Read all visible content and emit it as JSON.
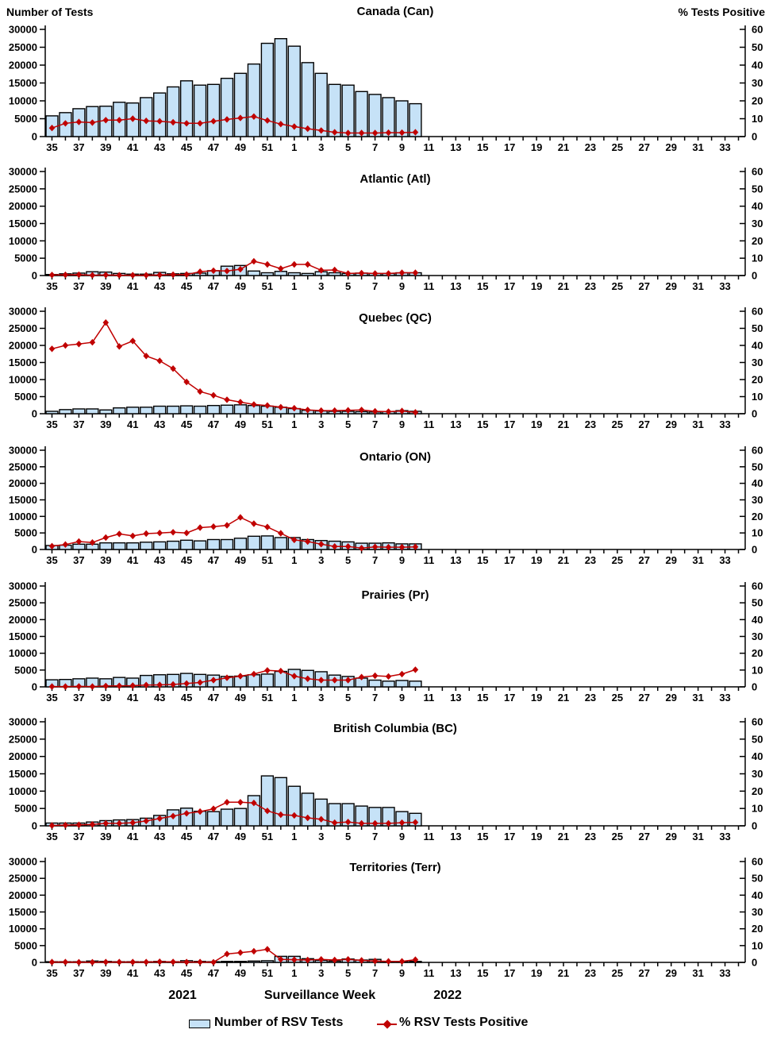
{
  "header": {
    "left_axis_title": "Number of Tests",
    "right_axis_title": "% Tests Positive"
  },
  "footer": {
    "year_left": "2021",
    "xaxis_title": "Surveillance Week",
    "year_right": "2022"
  },
  "legend": {
    "bars_label": "Number of RSV Tests",
    "line_label": "% RSV Tests Positive"
  },
  "colors": {
    "bar_fill": "#C6E2F7",
    "bar_stroke": "#000000",
    "line_color": "#C00000",
    "axis_color": "#000000"
  },
  "chart_data": {
    "type": "bar+line multi-panel",
    "left_axis": {
      "label": "Number of Tests",
      "min": 0,
      "max": 30000,
      "ticks": [
        0,
        5000,
        10000,
        15000,
        20000,
        25000,
        30000
      ]
    },
    "right_axis": {
      "label": "% Tests Positive",
      "min": 0,
      "max": 60,
      "ticks": [
        0,
        10,
        20,
        30,
        40,
        50,
        60
      ]
    },
    "x_axis": {
      "label": "Surveillance Week",
      "weeks": [
        35,
        36,
        37,
        38,
        39,
        40,
        41,
        42,
        43,
        44,
        45,
        46,
        47,
        48,
        49,
        50,
        51,
        52,
        1,
        2,
        3,
        4,
        5,
        6,
        7,
        8,
        9,
        10,
        11,
        12,
        13,
        14,
        15,
        16,
        17,
        18,
        19,
        20,
        21,
        22,
        23,
        24,
        25,
        26,
        27,
        28,
        29,
        30,
        31,
        32,
        33,
        34
      ],
      "labeled_ticks": [
        35,
        37,
        39,
        41,
        43,
        45,
        47,
        49,
        51,
        1,
        3,
        5,
        7,
        9,
        11,
        13,
        15,
        17,
        19,
        21,
        23,
        25,
        27,
        29,
        31,
        33
      ]
    },
    "data_weeks": [
      35,
      36,
      37,
      38,
      39,
      40,
      41,
      42,
      43,
      44,
      45,
      46,
      47,
      48,
      49,
      50,
      51,
      52,
      1,
      2,
      3,
      4,
      5,
      6,
      7,
      8,
      9,
      10
    ],
    "panels": [
      {
        "title": "Canada (Can)",
        "tests": [
          5800,
          6700,
          7800,
          8400,
          8500,
          9600,
          9400,
          10900,
          12200,
          13900,
          15600,
          14400,
          14600,
          16300,
          17700,
          20300,
          26100,
          27400,
          25300,
          20700,
          17700,
          14600,
          14400,
          12600,
          11800,
          10900,
          10000,
          9200
        ],
        "pct_positive": [
          4.8,
          7.4,
          8.2,
          7.8,
          9.2,
          9.2,
          10.0,
          8.8,
          8.6,
          8.0,
          7.4,
          7.4,
          8.6,
          9.6,
          10.4,
          11.2,
          9.0,
          7.0,
          5.6,
          4.4,
          3.4,
          2.4,
          2.0,
          2.0,
          2.0,
          2.2,
          2.2,
          2.4
        ]
      },
      {
        "title": "Atlantic (Atl)",
        "tests": [
          300,
          500,
          700,
          1100,
          1000,
          600,
          400,
          400,
          900,
          500,
          600,
          700,
          1400,
          2700,
          2900,
          1300,
          800,
          1200,
          800,
          600,
          1100,
          800,
          600,
          700,
          600,
          600,
          800,
          800
        ],
        "pct_positive": [
          0.3,
          0.4,
          0.5,
          0.2,
          0.3,
          0.2,
          0.2,
          0.2,
          0.3,
          0.5,
          0.6,
          2.2,
          2.8,
          2.6,
          3.6,
          8.2,
          6.4,
          4.0,
          6.4,
          6.4,
          3.0,
          3.2,
          1.2,
          1.4,
          1.2,
          1.2,
          1.6,
          1.6
        ]
      },
      {
        "title": "Quebec (QC)",
        "tests": [
          700,
          1200,
          1400,
          1400,
          1100,
          1700,
          1900,
          1900,
          2200,
          2200,
          2300,
          2200,
          2400,
          2500,
          2600,
          2400,
          2200,
          1900,
          1500,
          1000,
          800,
          700,
          700,
          600,
          500,
          600,
          900,
          700
        ],
        "pct_positive": [
          38.0,
          40.0,
          40.8,
          41.8,
          53.4,
          39.4,
          42.6,
          33.8,
          31.0,
          26.4,
          18.6,
          13.0,
          10.8,
          8.2,
          6.8,
          5.4,
          4.8,
          3.8,
          3.2,
          2.2,
          1.8,
          1.8,
          2.0,
          2.2,
          1.4,
          1.2,
          1.6,
          0.8
        ]
      },
      {
        "title": "Ontario (ON)",
        "tests": [
          1200,
          1300,
          1600,
          1600,
          2000,
          2000,
          2000,
          2200,
          2300,
          2500,
          2800,
          2600,
          3000,
          3000,
          3400,
          4000,
          4100,
          3600,
          3600,
          3000,
          2700,
          2500,
          2300,
          1900,
          1900,
          2000,
          1700,
          1700
        ],
        "pct_positive": [
          2.0,
          3.0,
          4.8,
          4.2,
          7.2,
          9.4,
          8.2,
          9.6,
          10.0,
          10.4,
          10.0,
          13.2,
          13.8,
          14.6,
          19.4,
          15.6,
          13.6,
          9.8,
          5.8,
          4.8,
          3.2,
          1.8,
          1.8,
          0.8,
          1.6,
          1.4,
          1.4,
          1.6
        ]
      },
      {
        "title": "Prairies (Pr)",
        "tests": [
          2100,
          2200,
          2400,
          2600,
          2400,
          2800,
          2600,
          3400,
          3600,
          3700,
          4000,
          3700,
          3500,
          3100,
          3200,
          3600,
          3800,
          4600,
          5200,
          4900,
          4500,
          3500,
          3100,
          2600,
          2000,
          1700,
          1900,
          1700
        ],
        "pct_positive": [
          0.2,
          0.2,
          0.3,
          0.2,
          0.5,
          0.6,
          0.7,
          1.1,
          1.2,
          1.4,
          2.0,
          2.6,
          4.0,
          5.4,
          6.4,
          7.6,
          9.8,
          9.4,
          6.4,
          4.8,
          4.0,
          4.0,
          4.0,
          5.8,
          6.6,
          6.2,
          7.6,
          10.2
        ]
      },
      {
        "title": "British Columbia (BC)",
        "tests": [
          800,
          800,
          800,
          1100,
          1500,
          1700,
          1800,
          2200,
          3000,
          4600,
          5100,
          4200,
          4100,
          4800,
          5000,
          8700,
          14400,
          13900,
          11400,
          9400,
          7700,
          6400,
          6400,
          5700,
          5300,
          5300,
          4100,
          3600
        ],
        "pct_positive": [
          0.2,
          0.4,
          0.6,
          0.8,
          1.4,
          1.4,
          1.8,
          2.8,
          4.2,
          5.6,
          7.2,
          8.2,
          9.8,
          13.6,
          13.6,
          13.2,
          8.6,
          6.4,
          6.0,
          4.6,
          3.8,
          1.8,
          2.2,
          1.4,
          1.4,
          1.4,
          1.8,
          2.0
        ]
      },
      {
        "title": "Territories (Terr)",
        "tests": [
          200,
          200,
          200,
          400,
          300,
          200,
          200,
          200,
          300,
          200,
          500,
          300,
          200,
          300,
          300,
          400,
          500,
          1800,
          1800,
          1100,
          600,
          400,
          1000,
          700,
          900,
          300,
          300,
          300
        ],
        "pct_positive": [
          0.2,
          0.2,
          0.1,
          0.1,
          0.2,
          0.2,
          0.2,
          0.2,
          0.4,
          0.3,
          0.2,
          0.2,
          0.1,
          5.0,
          5.8,
          6.6,
          7.8,
          1.8,
          1.6,
          1.4,
          1.8,
          1.4,
          1.8,
          1.2,
          0.8,
          0.6,
          0.6,
          1.6
        ]
      }
    ]
  }
}
